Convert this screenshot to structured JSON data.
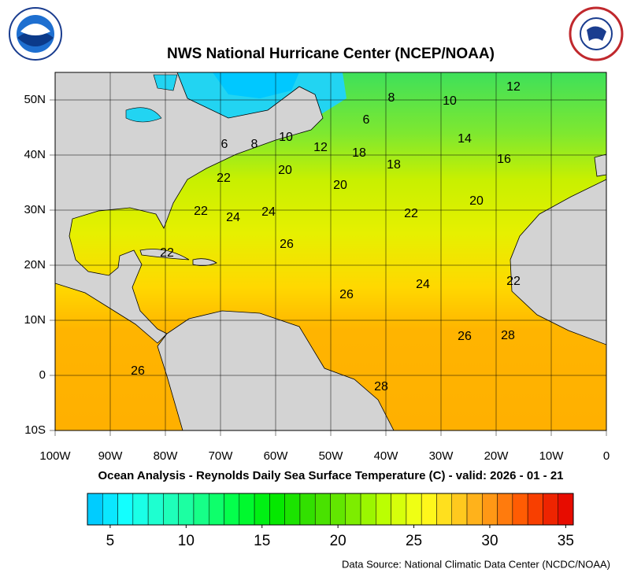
{
  "header": {
    "title": "NWS National Hurricane Center (NCEP/NOAA)"
  },
  "map": {
    "lon_labels": [
      "100W",
      "90W",
      "80W",
      "70W",
      "60W",
      "50W",
      "40W",
      "30W",
      "20W",
      "10W",
      "0"
    ],
    "lat_labels": [
      "50N",
      "40N",
      "30N",
      "20N",
      "10N",
      "0",
      "10S"
    ],
    "contour_labels": [
      "8",
      "10",
      "12",
      "6",
      "6",
      "8",
      "10",
      "12",
      "18",
      "14",
      "16",
      "18",
      "22",
      "20",
      "20",
      "20",
      "22",
      "24",
      "24",
      "22",
      "26",
      "26",
      "24",
      "26",
      "28",
      "26",
      "28",
      "22",
      "22"
    ],
    "caption": "Ocean Analysis - Reynolds Daily Sea Surface Temperature (C) - valid: 2026 - 01 - 21"
  },
  "colorbar": {
    "lim": [
      4,
      36
    ],
    "ticks": [
      5,
      10,
      15,
      20,
      25,
      30,
      35
    ]
  },
  "footer": {
    "source": "Data Source: National Climatic Data Center (NCDC/NOAA)"
  }
}
